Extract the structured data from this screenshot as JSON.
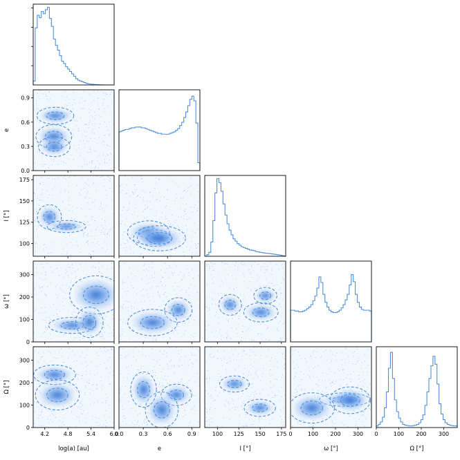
{
  "figure": {
    "accent_color": "#4f8fdd",
    "fill_color": "#3b82e8"
  },
  "chart_data": {
    "type": "corner",
    "parameters": [
      {
        "key": "loga",
        "label": "log(a) [au]",
        "short_label": "log(a) [au]",
        "range": [
          3.9,
          6.0
        ],
        "xticks": [
          4.2,
          4.8,
          5.4,
          6.0
        ],
        "xtick_labels": [
          "4.2",
          "4.8",
          "5.4",
          "6.0"
        ]
      },
      {
        "key": "e",
        "label": "e",
        "range": [
          0.0,
          1.0
        ],
        "xticks": [
          0.0,
          0.3,
          0.6,
          0.9
        ],
        "xtick_labels": [
          "0.0",
          "0.3",
          "0.6",
          "0.9"
        ],
        "yticks": [
          0.0,
          0.3,
          0.6,
          0.9
        ],
        "ytick_labels": [
          "0.0",
          "0.3",
          "0.6",
          "0.9"
        ]
      },
      {
        "key": "I",
        "label": "I [°]",
        "range": [
          85,
          180
        ],
        "xticks": [
          100,
          125,
          150,
          175
        ],
        "xtick_labels": [
          "100",
          "125",
          "150",
          "175"
        ],
        "yticks": [
          100,
          125,
          150,
          175
        ],
        "ytick_labels": [
          "100",
          "125",
          "150",
          "175"
        ]
      },
      {
        "key": "omega",
        "label": "ω [°]",
        "range": [
          0,
          360
        ],
        "xticks": [
          0,
          100,
          200,
          300
        ],
        "xtick_labels": [
          "0",
          "100",
          "200",
          "300"
        ],
        "yticks": [
          0,
          100,
          200,
          300
        ],
        "ytick_labels": [
          "0",
          "100",
          "200",
          "300"
        ]
      },
      {
        "key": "Omega",
        "label": "Ω [°]",
        "range": [
          0,
          360
        ],
        "xticks": [
          0,
          100,
          200,
          300
        ],
        "xtick_labels": [
          "0",
          "100",
          "200",
          "300"
        ],
        "yticks": [
          0,
          100,
          200,
          300
        ],
        "ytick_labels": [
          "0",
          "100",
          "200",
          "300"
        ]
      }
    ],
    "histograms": [
      {
        "param": "loga",
        "values": [
          0.05,
          0.72,
          0.88,
          0.85,
          0.93,
          0.9,
          0.95,
          0.98,
          0.84,
          0.74,
          0.58,
          0.5,
          0.44,
          0.37,
          0.3,
          0.27,
          0.23,
          0.2,
          0.17,
          0.14,
          0.11,
          0.08,
          0.06,
          0.05,
          0.04,
          0.03,
          0.02,
          0.015,
          0.01,
          0.008,
          0.006,
          0.004,
          0.003,
          0.002,
          0.001,
          0.001,
          0.0,
          0.0,
          0.0,
          0.0
        ]
      },
      {
        "param": "e",
        "values": [
          0.49,
          0.5,
          0.51,
          0.52,
          0.52,
          0.53,
          0.54,
          0.54,
          0.55,
          0.55,
          0.55,
          0.54,
          0.54,
          0.53,
          0.52,
          0.51,
          0.5,
          0.49,
          0.48,
          0.47,
          0.47,
          0.46,
          0.46,
          0.46,
          0.46,
          0.47,
          0.48,
          0.49,
          0.51,
          0.53,
          0.57,
          0.61,
          0.67,
          0.74,
          0.82,
          0.9,
          0.94,
          0.88,
          0.6,
          0.1
        ]
      },
      {
        "param": "I",
        "values": [
          0.0,
          0.02,
          0.05,
          0.18,
          0.45,
          0.8,
          0.98,
          0.93,
          0.82,
          0.66,
          0.52,
          0.41,
          0.33,
          0.27,
          0.22,
          0.19,
          0.16,
          0.14,
          0.12,
          0.11,
          0.1,
          0.09,
          0.08,
          0.075,
          0.07,
          0.06,
          0.055,
          0.05,
          0.046,
          0.042,
          0.038,
          0.035,
          0.032,
          0.029,
          0.026,
          0.022,
          0.018,
          0.013,
          0.008,
          0.004
        ]
      },
      {
        "param": "omega",
        "values": [
          0.4,
          0.4,
          0.39,
          0.39,
          0.38,
          0.38,
          0.39,
          0.4,
          0.42,
          0.44,
          0.47,
          0.52,
          0.58,
          0.68,
          0.82,
          0.75,
          0.6,
          0.5,
          0.44,
          0.4,
          0.38,
          0.37,
          0.37,
          0.38,
          0.4,
          0.43,
          0.47,
          0.53,
          0.6,
          0.72,
          0.85,
          0.76,
          0.6,
          0.5,
          0.44,
          0.41,
          0.4,
          0.4,
          0.4,
          0.39
        ]
      },
      {
        "param": "Omega",
        "values": [
          0.02,
          0.04,
          0.07,
          0.13,
          0.25,
          0.45,
          0.75,
          0.95,
          0.62,
          0.35,
          0.2,
          0.12,
          0.07,
          0.04,
          0.03,
          0.025,
          0.02,
          0.02,
          0.025,
          0.03,
          0.04,
          0.06,
          0.1,
          0.16,
          0.28,
          0.45,
          0.62,
          0.78,
          0.9,
          0.8,
          0.55,
          0.3,
          0.17,
          0.1,
          0.06,
          0.04,
          0.03,
          0.025,
          0.02,
          0.02
        ]
      }
    ]
  }
}
